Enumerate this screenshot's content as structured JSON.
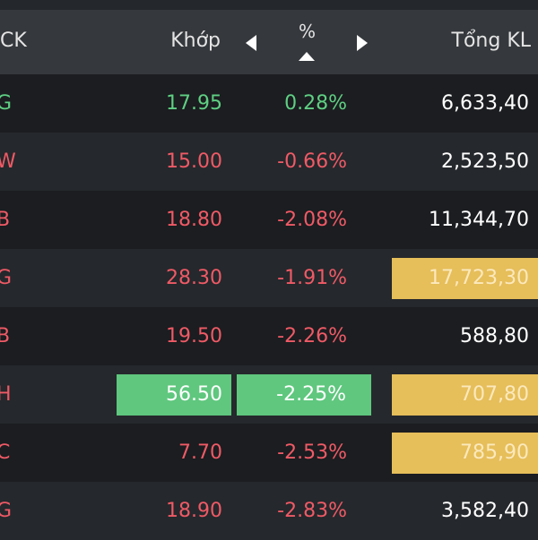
{
  "header": {
    "symbol_label": "CK",
    "price_label": "Khớp",
    "percent_label": "%",
    "total_label": "Tổng KL"
  },
  "colors": {
    "up": "#5fcf83",
    "down": "#ef5a66",
    "highlight_green": "#5fc77e",
    "highlight_yellow": "#e6be5a"
  },
  "rows": [
    {
      "symbol": "G",
      "price": "17.95",
      "percent": "0.28%",
      "volume": "6,633,40",
      "trend": "up"
    },
    {
      "symbol": "W",
      "price": "15.00",
      "percent": "-0.66%",
      "volume": "2,523,50",
      "trend": "down"
    },
    {
      "symbol": "B",
      "price": "18.80",
      "percent": "-2.08%",
      "volume": "11,344,70",
      "trend": "down"
    },
    {
      "symbol": "G",
      "price": "28.30",
      "percent": "-1.91%",
      "volume": "17,723,30",
      "trend": "down"
    },
    {
      "symbol": "B",
      "price": "19.50",
      "percent": "-2.26%",
      "volume": "588,80",
      "trend": "down"
    },
    {
      "symbol": "H",
      "price": "56.50",
      "percent": "-2.25%",
      "volume": "707,80",
      "trend": "down"
    },
    {
      "symbol": "C",
      "price": "7.70",
      "percent": "-2.53%",
      "volume": "785,90",
      "trend": "down"
    },
    {
      "symbol": "G",
      "price": "18.90",
      "percent": "-2.83%",
      "volume": "3,582,40",
      "trend": "down"
    }
  ]
}
